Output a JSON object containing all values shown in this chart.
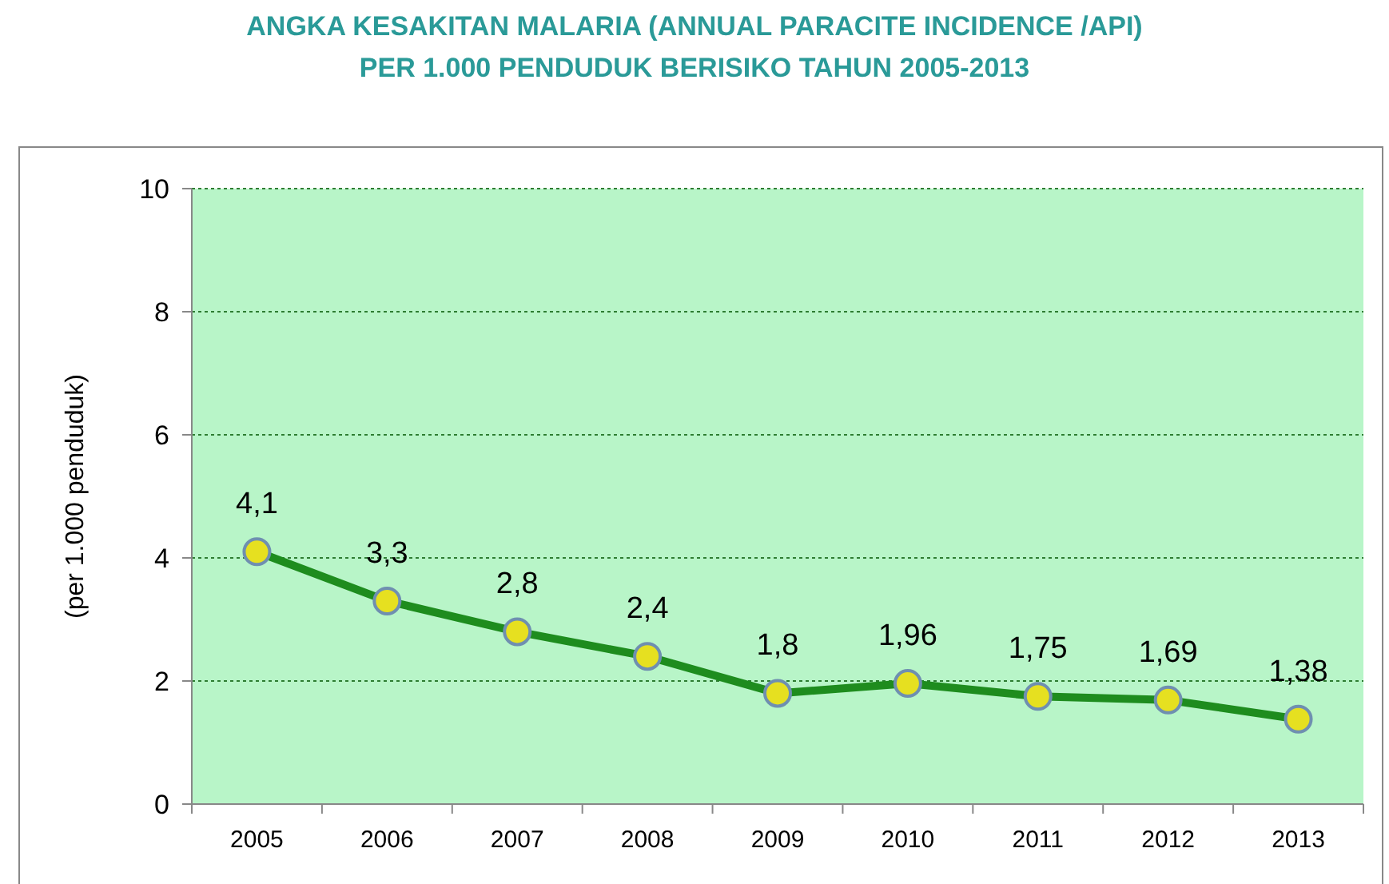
{
  "chart_data": {
    "type": "line",
    "title": "ANGKA KESAKITAN MALARIA (ANNUAL PARACITE INCIDENCE /API)\nPER 1.000 PENDUDUK BERISIKO TAHUN 2005-2013",
    "ylabel": "(per 1.000 penduduk)",
    "categories": [
      "2005",
      "2006",
      "2007",
      "2008",
      "2009",
      "2010",
      "2011",
      "2012",
      "2013"
    ],
    "series": [
      {
        "color": "#1e8c1e",
        "values": [
          4.1,
          3.3,
          2.8,
          2.4,
          1.8,
          1.96,
          1.75,
          1.69,
          1.38
        ],
        "value_labels": [
          "4,1",
          "3,3",
          "2,8",
          "2,4",
          "1,8",
          "1,96",
          "1,75",
          "1,69",
          "1,38"
        ]
      }
    ],
    "ylim": [
      0,
      10
    ],
    "yticks": [
      0,
      2,
      4,
      6,
      8,
      10
    ],
    "grid": "y",
    "marker": "circle",
    "line_style": "solid"
  }
}
